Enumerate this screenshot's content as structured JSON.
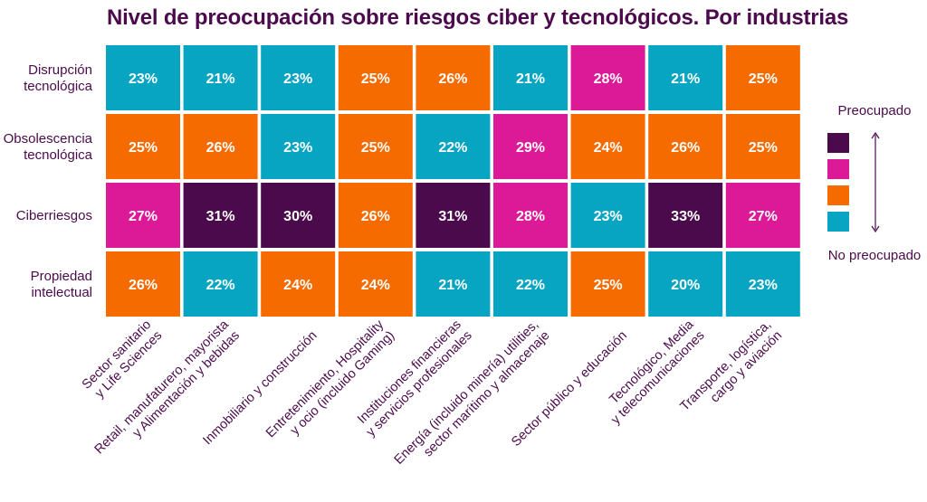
{
  "chart_data": {
    "type": "heatmap",
    "title": "Nivel de preocupación sobre riesgos ciber y tecnológicos. Por industrias",
    "rows": [
      [
        "Disrupción",
        "tecnológica"
      ],
      [
        "Obsolescencia",
        "tecnológica"
      ],
      [
        "Ciberriesgos"
      ],
      [
        "Propiedad",
        "intelectual"
      ]
    ],
    "columns": [
      [
        "Sector sanitario",
        "y Life Sciences"
      ],
      [
        "Retail, manufaturero, mayorista",
        "y Alimentación y bebidas"
      ],
      [
        "Inmobiliario y construcción"
      ],
      [
        "Entretenimiento, Hospitality",
        "y ocio (incluido Gaming)"
      ],
      [
        "Instituciones financieras",
        "y servicios profesionales"
      ],
      [
        "Energía (incluido minería) utilities,",
        "sector marítimo y almacenaje"
      ],
      [
        "Sector público y educación"
      ],
      [
        "Tecnológico, Media",
        "y telecomunicaciones"
      ],
      [
        "Transporte, logística,",
        "cargo y aviación"
      ]
    ],
    "values": [
      [
        23,
        21,
        23,
        25,
        26,
        21,
        28,
        21,
        25
      ],
      [
        25,
        26,
        23,
        25,
        22,
        29,
        24,
        26,
        25
      ],
      [
        27,
        31,
        30,
        26,
        31,
        28,
        23,
        33,
        27
      ],
      [
        26,
        22,
        24,
        24,
        21,
        22,
        25,
        20,
        23
      ]
    ],
    "levels": [
      [
        1,
        1,
        1,
        2,
        2,
        1,
        3,
        1,
        2
      ],
      [
        2,
        2,
        1,
        2,
        1,
        3,
        2,
        2,
        2
      ],
      [
        3,
        4,
        4,
        2,
        4,
        3,
        1,
        4,
        3
      ],
      [
        2,
        1,
        2,
        2,
        1,
        1,
        2,
        1,
        1
      ]
    ],
    "value_suffix": "%",
    "legend": {
      "top_label": "Preocupado",
      "bottom_label": "No preocupado",
      "colors": [
        "#4b0a4c",
        "#dc1a98",
        "#f56b00",
        "#08a5c2"
      ]
    },
    "level_colors": {
      "1": "#08a5c2",
      "2": "#f56b00",
      "3": "#dc1a98",
      "4": "#4b0a4c"
    }
  }
}
